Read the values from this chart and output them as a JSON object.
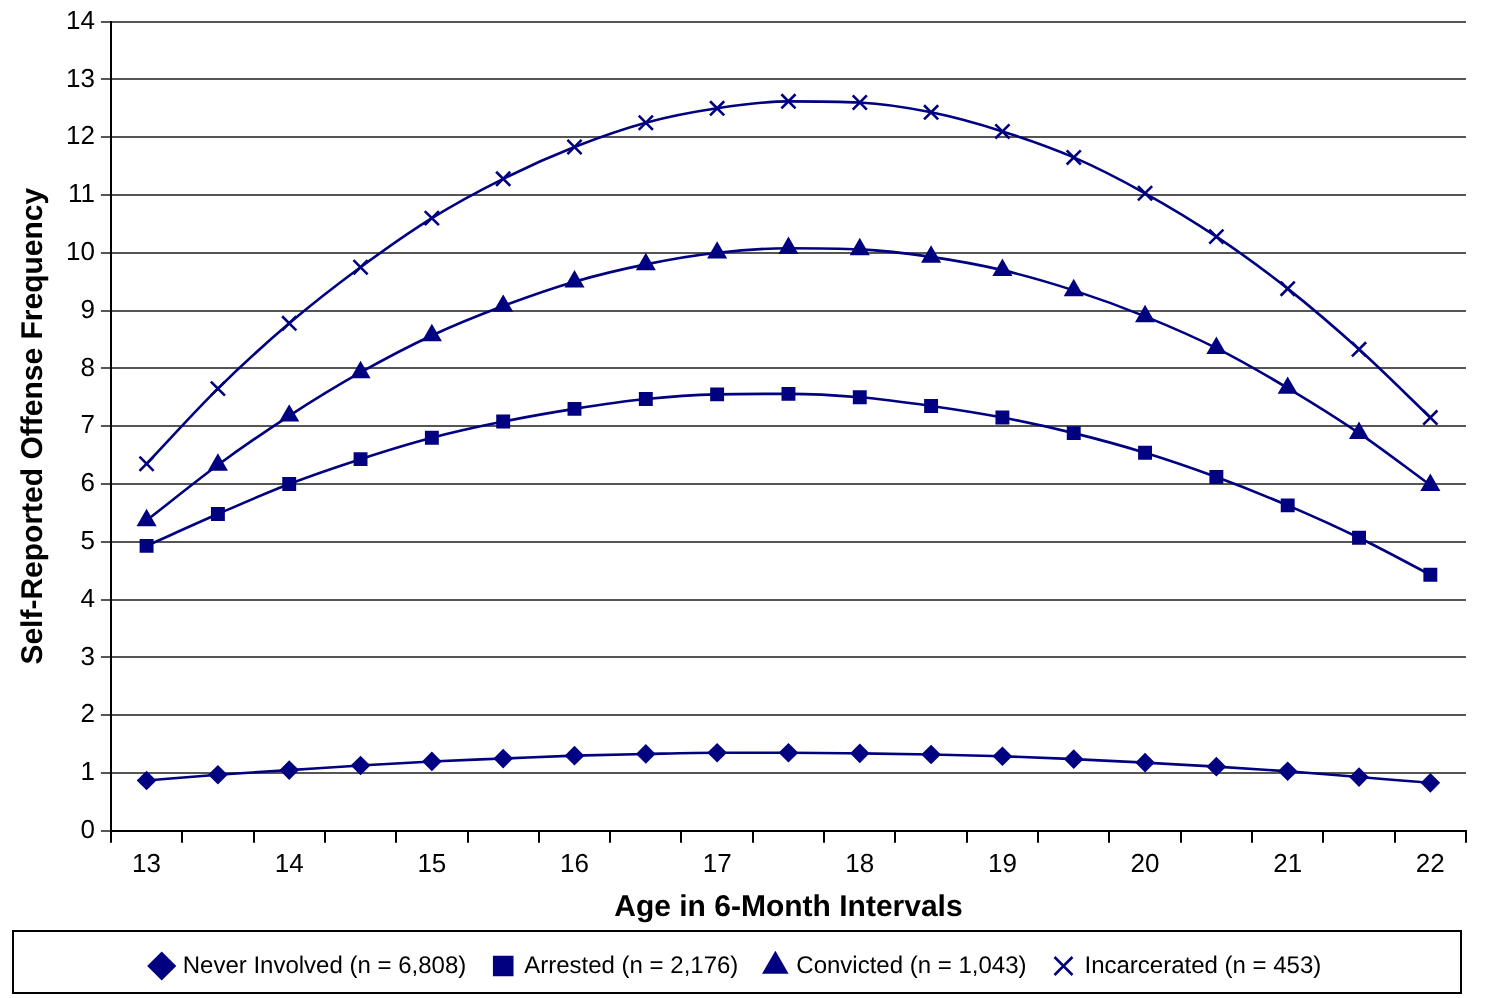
{
  "chart_data": {
    "type": "line",
    "xlabel": "Age in 6-Month Intervals",
    "ylabel": "Self-Reported Offense Frequency",
    "categories": [
      "13",
      null,
      "14",
      null,
      "15",
      null,
      "16",
      null,
      "17",
      null,
      "18",
      null,
      "19",
      null,
      "20",
      null,
      "21",
      null,
      "22"
    ],
    "series": [
      {
        "name": "Never Involved (n = 6,808)",
        "color": "#000080",
        "marker": "diamond",
        "values": [
          0.87,
          0.97,
          1.05,
          1.13,
          1.2,
          1.25,
          1.3,
          1.33,
          1.35,
          1.35,
          1.34,
          1.32,
          1.29,
          1.24,
          1.18,
          1.11,
          1.03,
          0.93,
          0.83
        ]
      },
      {
        "name": "Arrested (n = 2,176)",
        "color": "#000080",
        "marker": "square",
        "values": [
          4.93,
          5.48,
          6.0,
          6.43,
          6.8,
          7.08,
          7.3,
          7.47,
          7.55,
          7.56,
          7.5,
          7.35,
          7.15,
          6.88,
          6.54,
          6.12,
          5.63,
          5.07,
          4.43
        ]
      },
      {
        "name": "Convicted (n = 1,043)",
        "color": "#000080",
        "marker": "triangle",
        "values": [
          5.37,
          6.33,
          7.18,
          7.93,
          8.57,
          9.08,
          9.5,
          9.8,
          10.0,
          10.08,
          10.06,
          9.93,
          9.7,
          9.35,
          8.9,
          8.35,
          7.66,
          6.88,
          5.98
        ]
      },
      {
        "name": "Incarcerated (n = 453)",
        "color": "#000080",
        "marker": "cross",
        "values": [
          6.35,
          7.65,
          8.78,
          9.75,
          10.6,
          11.28,
          11.83,
          12.25,
          12.5,
          12.62,
          12.6,
          12.43,
          12.1,
          11.65,
          11.03,
          10.28,
          9.38,
          8.33,
          7.15
        ]
      }
    ],
    "ylim": [
      0,
      14
    ],
    "yticks": [
      0,
      1,
      2,
      3,
      4,
      5,
      6,
      7,
      8,
      9,
      10,
      11,
      12,
      13,
      14
    ],
    "grid": "y",
    "legend": "bottom",
    "line_style": "solid"
  }
}
